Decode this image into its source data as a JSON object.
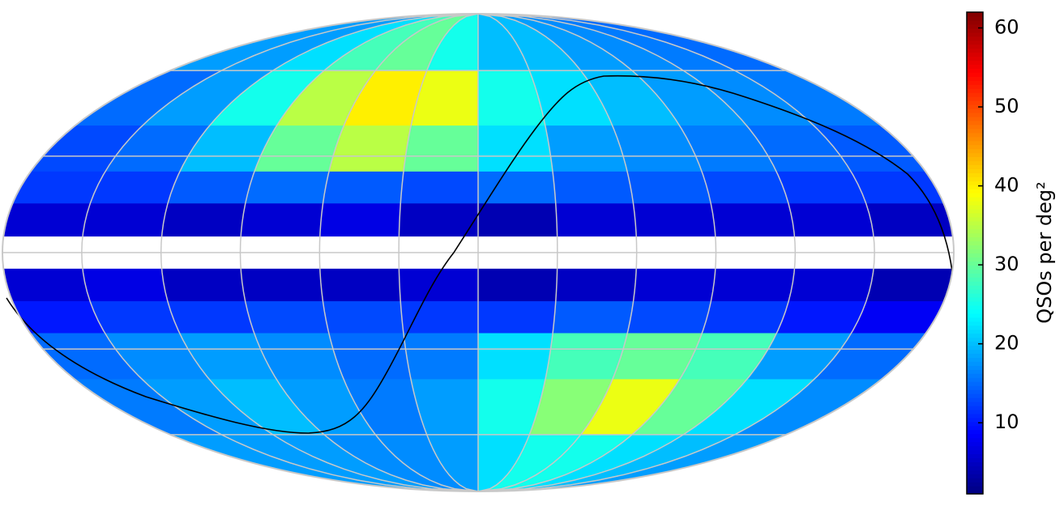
{
  "chart_data": {
    "type": "mollweide",
    "colorbar_label": "QSOs per deg²",
    "colormap": "jet",
    "clim": [
      1,
      62
    ],
    "cticks": [
      10,
      20,
      30,
      40,
      50,
      60
    ],
    "lon_edges": [
      180,
      150,
      120,
      90,
      60,
      30,
      0,
      -30,
      -60,
      -90,
      -120,
      -150,
      -180
    ],
    "lat_edges": [
      90,
      60,
      40,
      25,
      15,
      5,
      -5,
      -15,
      -25,
      -40,
      -60,
      -90
    ],
    "values": [
      [
        18,
        18,
        22,
        28,
        30,
        25,
        20,
        20,
        18,
        17,
        16,
        15
      ],
      [
        15,
        18,
        25,
        35,
        40,
        38,
        25,
        22,
        20,
        18,
        17,
        16
      ],
      [
        13,
        15,
        20,
        30,
        35,
        30,
        22,
        18,
        17,
        16,
        15,
        14
      ],
      [
        12,
        12,
        14,
        15,
        14,
        13,
        15,
        14,
        14,
        13,
        12,
        12
      ],
      [
        6,
        6,
        5,
        6,
        7,
        5,
        4,
        6,
        6,
        6,
        6,
        5
      ],
      [
        null,
        null,
        null,
        null,
        null,
        null,
        null,
        null,
        null,
        null,
        null,
        null
      ],
      [
        6,
        7,
        5,
        5,
        5,
        6,
        4,
        5,
        6,
        6,
        6,
        4
      ],
      [
        10,
        12,
        12,
        13,
        13,
        12,
        12,
        14,
        13,
        12,
        10,
        8
      ],
      [
        15,
        17,
        18,
        17,
        15,
        16,
        22,
        28,
        30,
        28,
        18,
        15
      ],
      [
        16,
        18,
        20,
        18,
        16,
        18,
        25,
        32,
        38,
        30,
        22,
        17
      ],
      [
        18,
        18,
        18,
        17,
        17,
        18,
        22,
        25,
        25,
        22,
        20,
        18
      ]
    ]
  }
}
